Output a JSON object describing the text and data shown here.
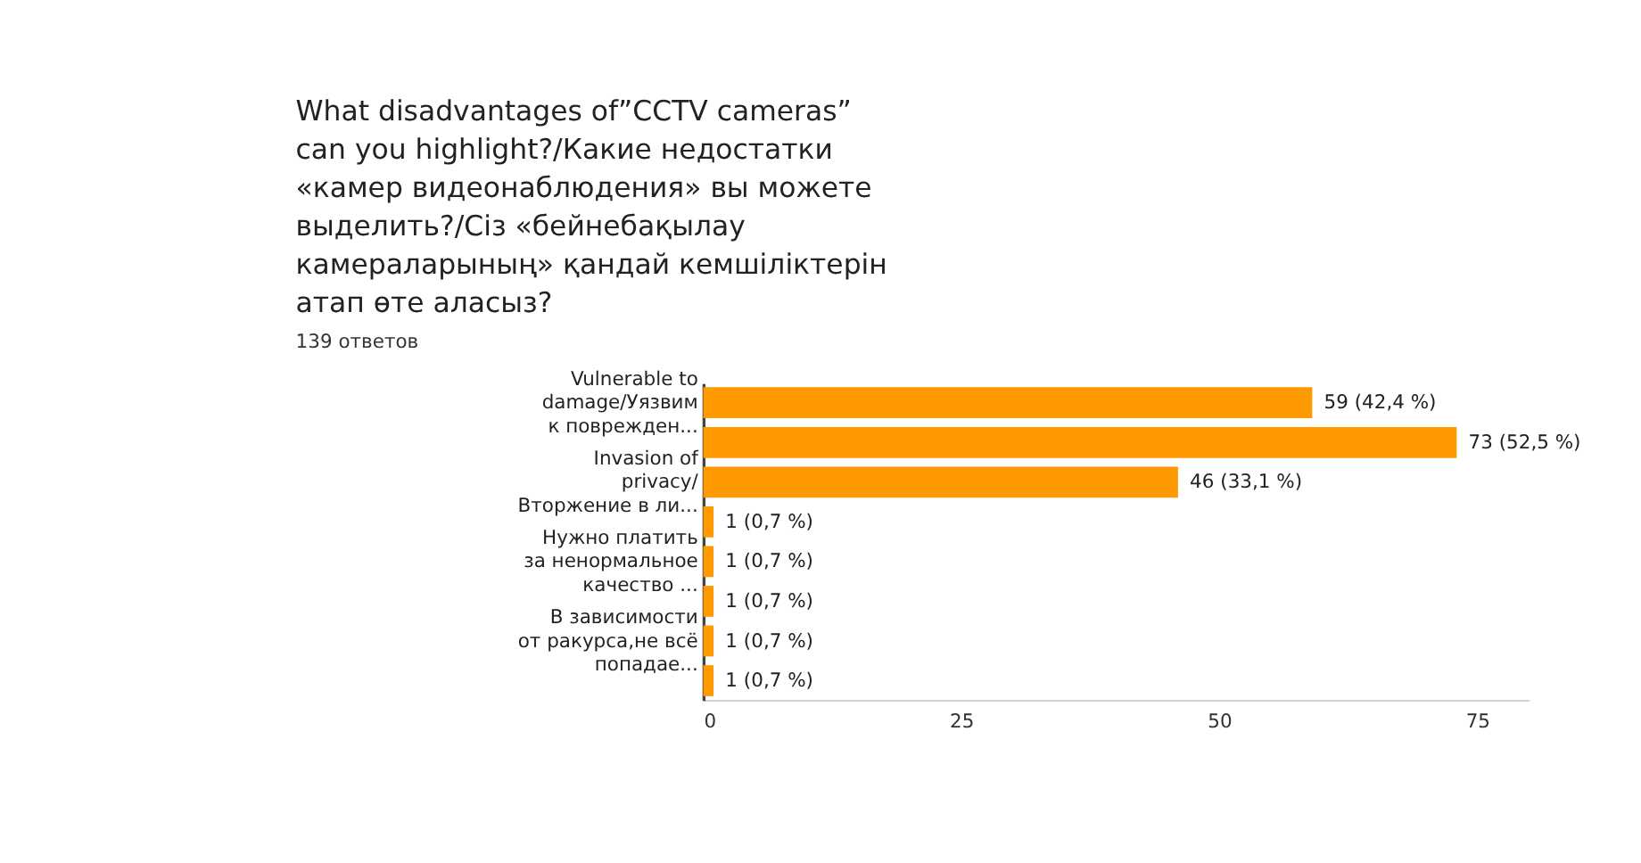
{
  "chart_data": {
    "type": "bar",
    "orientation": "horizontal",
    "title": "What disadvantages of”CCTV cameras” can you highlight?/Какие недостатки «камер видеонаблюдения» вы можете выделить?/Сіз «бейнебақылау камераларының» қандай кемшіліктерін атап өте аласыз?",
    "subtitle": "139 ответов",
    "categories": [
      "Vulnerable to\ndamage/Уязвим\nк поврежден...",
      null,
      "Invasion of\nprivacy/\nВторжение в ли...",
      null,
      "Нужно платить\nза ненормальное\nкачество ...",
      null,
      "В зависимости\nот ракурса,не всё\nпопадае...",
      null
    ],
    "values": [
      59,
      73,
      46,
      1,
      1,
      1,
      1,
      1
    ],
    "value_labels": [
      "59 (42,4 %)",
      "73 (52,5 %)",
      "46 (33,1 %)",
      "1 (0,7 %)",
      "1 (0,7 %)",
      "1 (0,7 %)",
      "1 (0,7 %)",
      "1 (0,7 %)"
    ],
    "color": "#ff9900",
    "xlim": [
      0,
      80
    ],
    "xticks": [
      0,
      25,
      50,
      75
    ],
    "grid": false
  }
}
